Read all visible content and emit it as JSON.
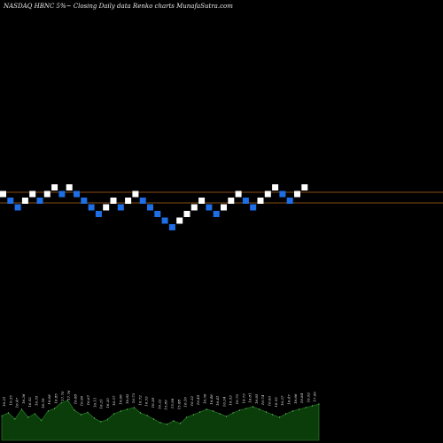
{
  "header": {
    "title": "NASDAQ HBNC 5%~  Closing Daily data  Renko  charts MunafaSutra.com"
  },
  "colors": {
    "background": "#000000",
    "brick_up": "#ffffff",
    "brick_down": "#1e6fe6",
    "reference_line": "#b5651d",
    "volume_area": "#0a3d0a",
    "volume_outline": "#2e8b2e"
  },
  "chart_data": {
    "type": "renko",
    "brick_percent": 5,
    "bricks": [
      {
        "dir": "up",
        "level": 3
      },
      {
        "dir": "down",
        "level": 2
      },
      {
        "dir": "down",
        "level": 1
      },
      {
        "dir": "up",
        "level": 2
      },
      {
        "dir": "up",
        "level": 3
      },
      {
        "dir": "down",
        "level": 2
      },
      {
        "dir": "up",
        "level": 3
      },
      {
        "dir": "up",
        "level": 4
      },
      {
        "dir": "down",
        "level": 3
      },
      {
        "dir": "up",
        "level": 4
      },
      {
        "dir": "down",
        "level": 3
      },
      {
        "dir": "down",
        "level": 2
      },
      {
        "dir": "down",
        "level": 1
      },
      {
        "dir": "down",
        "level": 0
      },
      {
        "dir": "up",
        "level": 1
      },
      {
        "dir": "up",
        "level": 2
      },
      {
        "dir": "down",
        "level": 1
      },
      {
        "dir": "up",
        "level": 2
      },
      {
        "dir": "up",
        "level": 3
      },
      {
        "dir": "down",
        "level": 2
      },
      {
        "dir": "down",
        "level": 1
      },
      {
        "dir": "down",
        "level": 0
      },
      {
        "dir": "down",
        "level": -1
      },
      {
        "dir": "down",
        "level": -2
      },
      {
        "dir": "up",
        "level": -1
      },
      {
        "dir": "up",
        "level": 0
      },
      {
        "dir": "up",
        "level": 1
      },
      {
        "dir": "up",
        "level": 2
      },
      {
        "dir": "down",
        "level": 1
      },
      {
        "dir": "down",
        "level": 0
      },
      {
        "dir": "up",
        "level": 1
      },
      {
        "dir": "up",
        "level": 2
      },
      {
        "dir": "up",
        "level": 3
      },
      {
        "dir": "down",
        "level": 2
      },
      {
        "dir": "down",
        "level": 1
      },
      {
        "dir": "up",
        "level": 2
      },
      {
        "dir": "up",
        "level": 3
      },
      {
        "dir": "up",
        "level": 4
      },
      {
        "dir": "down",
        "level": 3
      },
      {
        "dir": "down",
        "level": 2
      },
      {
        "dir": "up",
        "level": 3
      },
      {
        "dir": "up",
        "level": 4
      }
    ],
    "volume_labels": [
      "16.21",
      "16.35",
      "16.47",
      "16.36",
      "16.52",
      "16.55",
      "16.59",
      "16.68",
      "16.85",
      "17.70",
      "17.76",
      "16.88",
      "16.96",
      "16.67",
      "16.11",
      "16.31",
      "16.30",
      "16.57",
      "16.66",
      "16.82",
      "16.73",
      "16.72",
      "16.53",
      "16.38",
      "16.22",
      "15.89",
      "15.98",
      "15.88",
      "16.16",
      "16.32",
      "16.49",
      "16.56",
      "16.48",
      "16.41",
      "16.34",
      "16.53",
      "16.70",
      "16.73",
      "16.81",
      "16.85",
      "16.74",
      "16.63",
      "16.55",
      "16.37",
      "16.47",
      "16.66",
      "16.84",
      "16.92",
      "17.06"
    ],
    "volumes": [
      0.55,
      0.62,
      0.48,
      0.7,
      0.52,
      0.6,
      0.45,
      0.66,
      0.72,
      0.85,
      0.9,
      0.68,
      0.58,
      0.63,
      0.5,
      0.42,
      0.47,
      0.6,
      0.66,
      0.7,
      0.74,
      0.62,
      0.56,
      0.48,
      0.4,
      0.36,
      0.44,
      0.38,
      0.52,
      0.58,
      0.64,
      0.7,
      0.66,
      0.6,
      0.54,
      0.62,
      0.68,
      0.72,
      0.76,
      0.7,
      0.64,
      0.58,
      0.52,
      0.6,
      0.66,
      0.7,
      0.74,
      0.78,
      0.82
    ]
  }
}
